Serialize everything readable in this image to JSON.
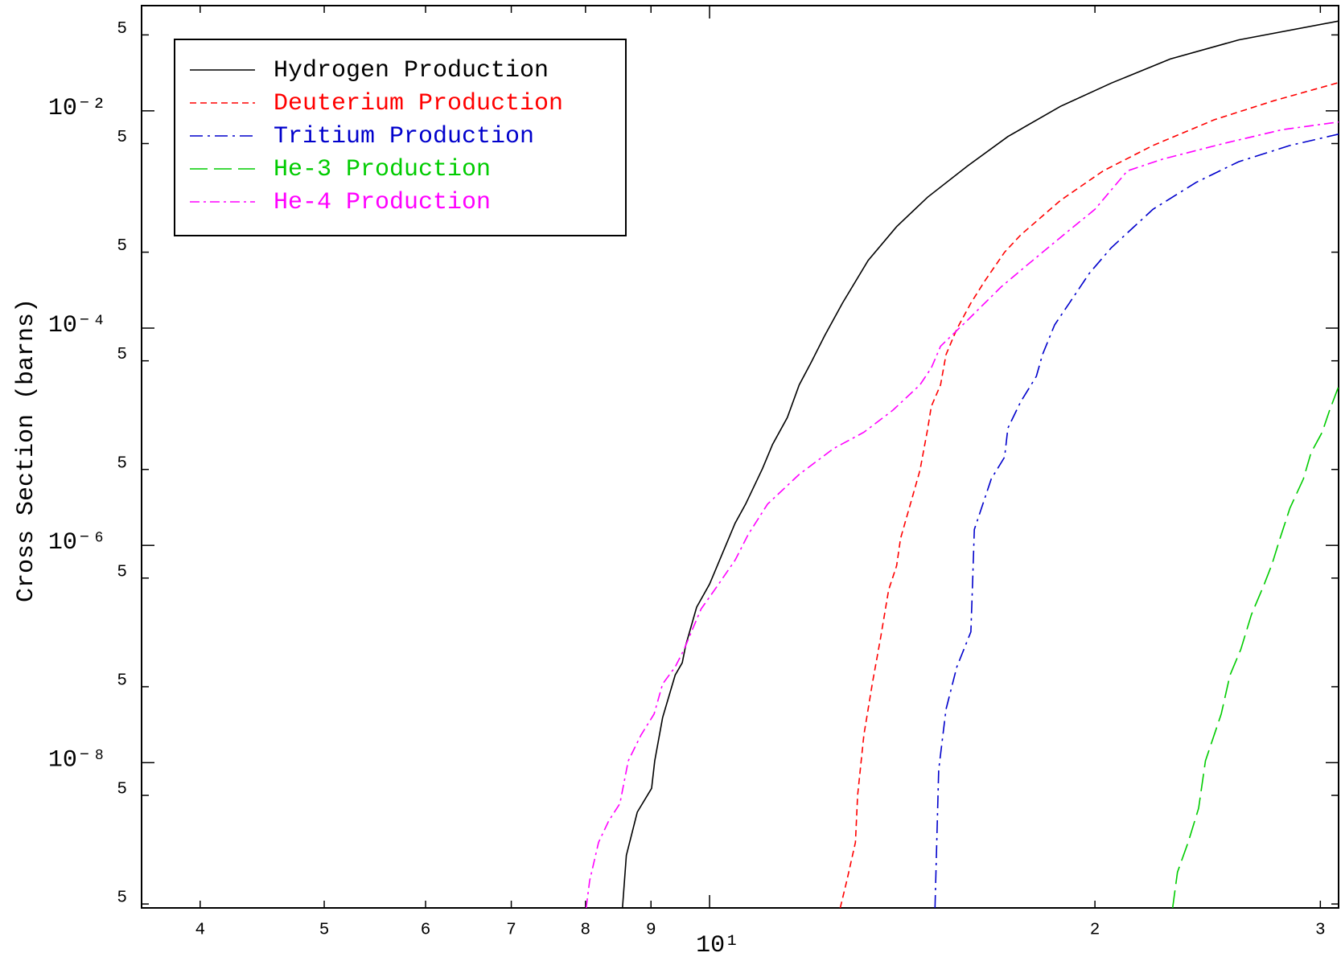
{
  "chart_data": {
    "type": "line",
    "ylabel": "Cross Section (barns)",
    "xscale": "log",
    "yscale": "log",
    "xlim": [
      3.6,
      31
    ],
    "ylim": [
      4.6e-10,
      0.093
    ],
    "xticks": [
      4,
      5,
      6,
      7,
      8,
      9,
      {
        "value": 10,
        "label": "10¹"
      },
      {
        "value": 20,
        "label": "2"
      },
      {
        "value": 30,
        "label": "3"
      }
    ],
    "yticks": [
      {
        "value": 0.05,
        "label": "5"
      },
      {
        "value": 0.01,
        "label": "10⁻²"
      },
      {
        "value": 0.005,
        "label": "5"
      },
      {
        "value": 0.0005,
        "label": "5"
      },
      {
        "value": 0.0001,
        "label": "10⁻⁴"
      },
      {
        "value": 5e-05,
        "label": "5"
      },
      {
        "value": 5e-06,
        "label": "5"
      },
      {
        "value": 1e-06,
        "label": "10⁻⁶"
      },
      {
        "value": 5e-07,
        "label": "5"
      },
      {
        "value": 5e-08,
        "label": "5"
      },
      {
        "value": 1e-08,
        "label": "10⁻⁸"
      },
      {
        "value": 5e-09,
        "label": "5"
      },
      {
        "value": 5e-10,
        "label": "5"
      }
    ],
    "legend": "upper left",
    "series": [
      {
        "name": "Hydrogen Production",
        "color": "#000000",
        "dash": "solid",
        "x": [
          8.55,
          8.61,
          8.78,
          9.01,
          9.06,
          9.19,
          9.4,
          9.52,
          9.58,
          9.77,
          10,
          10.15,
          10.47,
          10.67,
          11.0,
          11.2,
          11.5,
          11.75,
          12.0,
          12.3,
          12.7,
          13.3,
          14.0,
          14.8,
          15.9,
          17.1,
          18.8,
          20.6,
          22.9,
          25.9,
          31.0
        ],
        "values": [
          4.6e-10,
          1.4e-09,
          3.5e-09,
          5.8e-09,
          1.04e-08,
          2.6e-08,
          6.4e-08,
          8.3e-08,
          1.2e-07,
          2.7e-07,
          4.4e-07,
          6.7e-07,
          1.6e-06,
          2.4e-06,
          5.1e-06,
          8.5e-06,
          1.5e-05,
          3e-05,
          4.8e-05,
          8.5e-05,
          0.00017,
          0.00042,
          0.00086,
          0.0016,
          0.0031,
          0.0058,
          0.011,
          0.018,
          0.03,
          0.045,
          0.067
        ]
      },
      {
        "name": "Deuterium Production",
        "color": "#ff0000",
        "dash": "dashed",
        "x": [
          12.65,
          12.8,
          13.0,
          13.05,
          13.2,
          13.4,
          13.6,
          13.8,
          14.0,
          14.1,
          14.35,
          14.6,
          14.8,
          14.9,
          15.15,
          15.3,
          15.6,
          16.0,
          16.4,
          17.0,
          17.5,
          18.8,
          20.3,
          22.2,
          24.8,
          27.6,
          31.0
        ],
        "values": [
          4.6e-10,
          8.2e-10,
          1.85e-09,
          5e-09,
          1.8e-08,
          5.3e-08,
          1.4e-07,
          3.9e-07,
          6.5e-07,
          1.16e-06,
          2.4e-06,
          4.9e-06,
          1.16e-05,
          1.9e-05,
          3e-05,
          5.7e-05,
          9.8e-05,
          0.00017,
          0.00027,
          0.0005,
          0.00072,
          0.0015,
          0.0028,
          0.0048,
          0.0083,
          0.0124,
          0.0182
        ]
      },
      {
        "name": "Tritium Production",
        "color": "#0000cc",
        "dash": "dashdot",
        "x": [
          15.0,
          15.1,
          15.3,
          15.6,
          16.0,
          16.05,
          16.1,
          16.6,
          17.0,
          17.1,
          17.5,
          18.0,
          18.2,
          18.6,
          19.1,
          19.8,
          20.6,
          22.2,
          24.0,
          25.9,
          28.4,
          31.0
        ],
        "values": [
          4.6e-10,
          8.6e-09,
          3.1e-08,
          7.6e-08,
          1.6e-07,
          4.7e-07,
          1.4e-06,
          4.1e-06,
          6.5e-06,
          1.2e-05,
          2.1e-05,
          3.6e-05,
          5.7e-05,
          0.000107,
          0.00017,
          0.00032,
          0.00055,
          0.00124,
          0.0022,
          0.0034,
          0.0048,
          0.0061
        ]
      },
      {
        "name": "He-3 Production",
        "color": "#00cc00",
        "dash": "longdash",
        "x": [
          23.0,
          23.2,
          23.65,
          24.1,
          24.4,
          25.1,
          25.5,
          26.0,
          26.5,
          27.1,
          27.5,
          27.9,
          28.4,
          29.1,
          29.5,
          30.1,
          30.5,
          31.0
        ],
        "values": [
          4.6e-10,
          9.8e-10,
          1.85e-09,
          3.8e-09,
          1.04e-08,
          2.8e-08,
          6.4e-08,
          1.1e-07,
          2.3e-07,
          4.3e-07,
          6.7e-07,
          1.16e-06,
          2.2e-06,
          4.1e-06,
          7.1e-06,
          1.1e-05,
          1.75e-05,
          2.9e-05
        ]
      },
      {
        "name": "He-4 Production",
        "color": "#ff00ff",
        "dash": "dashdotdot",
        "x": [
          8.01,
          8.06,
          8.19,
          8.34,
          8.51,
          8.64,
          8.84,
          9.05,
          9.19,
          9.4,
          9.55,
          9.7,
          9.85,
          10.15,
          10.47,
          10.72,
          11.1,
          11.75,
          12.5,
          13.2,
          13.9,
          14.6,
          14.9,
          15.15,
          15.9,
          16.9,
          17.7,
          18.9,
          20.0,
          21.2,
          22.6,
          25.2,
          28.0,
          31.0
        ],
        "values": [
          4.6e-10,
          8.2e-10,
          1.85e-09,
          2.9e-09,
          4.2e-09,
          1.04e-08,
          1.8e-08,
          2.8e-08,
          5.3e-08,
          7.6e-08,
          1.1e-07,
          1.7e-07,
          2.6e-07,
          4.3e-07,
          7.3e-07,
          1.26e-06,
          2.4e-06,
          4.5e-06,
          7.8e-06,
          1.1e-05,
          1.75e-05,
          3e-05,
          4.3e-05,
          6.8e-05,
          0.000118,
          0.00024,
          0.00038,
          0.00072,
          0.00124,
          0.0028,
          0.0036,
          0.005,
          0.0067,
          0.0079
        ]
      }
    ]
  }
}
